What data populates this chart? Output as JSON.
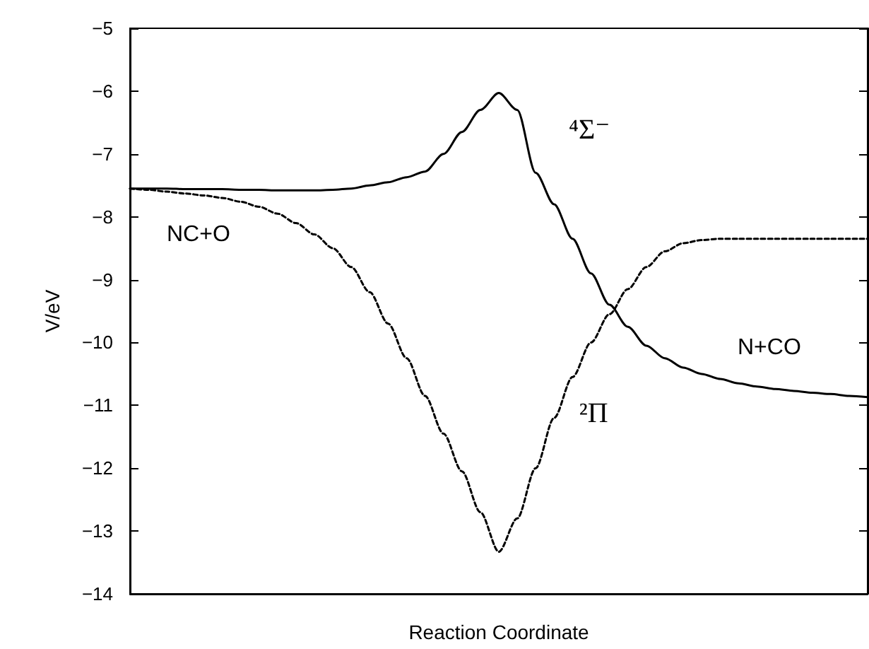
{
  "chart_data": {
    "type": "line",
    "xlabel": "Reaction Coordinate",
    "ylabel": "V/eV",
    "categories": [
      null,
      null,
      null,
      null,
      null,
      null,
      null,
      null,
      null,
      null,
      null,
      null,
      null,
      null,
      null,
      null,
      null,
      null,
      null,
      null,
      null,
      null,
      null,
      null,
      null,
      null,
      null,
      null,
      null,
      null,
      null,
      null,
      null,
      null,
      null,
      null,
      null,
      null,
      null,
      null,
      null
    ],
    "series": [
      {
        "name": "⁴Σ⁻",
        "color": "#000000",
        "line_style": "solid",
        "values": [
          -7.55,
          -7.55,
          -7.55,
          -7.56,
          -7.56,
          -7.56,
          -7.57,
          -7.57,
          -7.58,
          -7.58,
          -7.58,
          -7.57,
          -7.55,
          -7.5,
          -7.45,
          -7.37,
          -7.28,
          -7.0,
          -6.65,
          -6.3,
          -6.03,
          -6.3,
          -7.3,
          -7.8,
          -8.35,
          -8.9,
          -9.4,
          -9.75,
          -10.05,
          -10.25,
          -10.4,
          -10.5,
          -10.58,
          -10.65,
          -10.7,
          -10.74,
          -10.77,
          -10.8,
          -10.82,
          -10.85,
          -10.87
        ]
      },
      {
        "name": "²Π",
        "color": "#000000",
        "line_style": "dashed",
        "values": [
          -7.55,
          -7.57,
          -7.6,
          -7.63,
          -7.66,
          -7.7,
          -7.76,
          -7.84,
          -7.95,
          -8.1,
          -8.28,
          -8.5,
          -8.8,
          -9.2,
          -9.7,
          -10.25,
          -10.85,
          -11.45,
          -12.05,
          -12.7,
          -13.33,
          -12.8,
          -12.0,
          -11.2,
          -10.55,
          -10.0,
          -9.55,
          -9.15,
          -8.8,
          -8.55,
          -8.42,
          -8.37,
          -8.35,
          -8.35,
          -8.35,
          -8.35,
          -8.35,
          -8.35,
          -8.35,
          -8.35,
          -8.35
        ]
      }
    ],
    "annotations": [
      "NC+O",
      "N+CO"
    ],
    "ylim": [
      -14,
      -5
    ],
    "yticks": [
      -14,
      -13,
      -12,
      -11,
      -10,
      -9,
      -8,
      -7,
      -6,
      -5
    ],
    "tick_labels": "y",
    "grid": false,
    "legend": false,
    "marker": "none"
  }
}
